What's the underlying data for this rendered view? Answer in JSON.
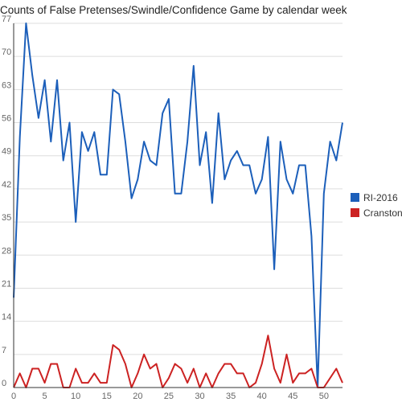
{
  "chart_data": {
    "type": "line",
    "title": "Counts of False Pretenses/Swindle/Confidence Game by calendar week",
    "xlabel": "",
    "ylabel": "",
    "xlim": [
      0,
      53
    ],
    "ylim": [
      0,
      77
    ],
    "x_ticks": [
      0,
      5,
      10,
      15,
      20,
      25,
      30,
      35,
      40,
      45,
      50
    ],
    "y_ticks": [
      0,
      7,
      14,
      21,
      28,
      35,
      42,
      49,
      56,
      63,
      70,
      77
    ],
    "grid": "horizontal",
    "legend_position": "right",
    "series": [
      {
        "name": "RI-2016",
        "color": "#1c5fba",
        "values": [
          19,
          53,
          77,
          66,
          57,
          65,
          52,
          65,
          48,
          56,
          35,
          54,
          50,
          54,
          45,
          45,
          63,
          62,
          52,
          40,
          44,
          52,
          48,
          47,
          58,
          61,
          41,
          41,
          52,
          68,
          47,
          54,
          39,
          58,
          44,
          48,
          50,
          47,
          47,
          41,
          44,
          53,
          25,
          52,
          44,
          41,
          47,
          47,
          32,
          0,
          41,
          52,
          48,
          56
        ]
      },
      {
        "name": "Cranston",
        "color": "#cc2222",
        "values": [
          0,
          3,
          0,
          4,
          4,
          1,
          5,
          5,
          0,
          0,
          4,
          1,
          1,
          3,
          1,
          1,
          9,
          8,
          5,
          0,
          3,
          7,
          4,
          5,
          0,
          2,
          5,
          4,
          1,
          4,
          0,
          3,
          0,
          3,
          5,
          5,
          3,
          3,
          0,
          1,
          5,
          11,
          4,
          1,
          7,
          1,
          3,
          3,
          4,
          0,
          0,
          2,
          4,
          1
        ]
      }
    ]
  }
}
